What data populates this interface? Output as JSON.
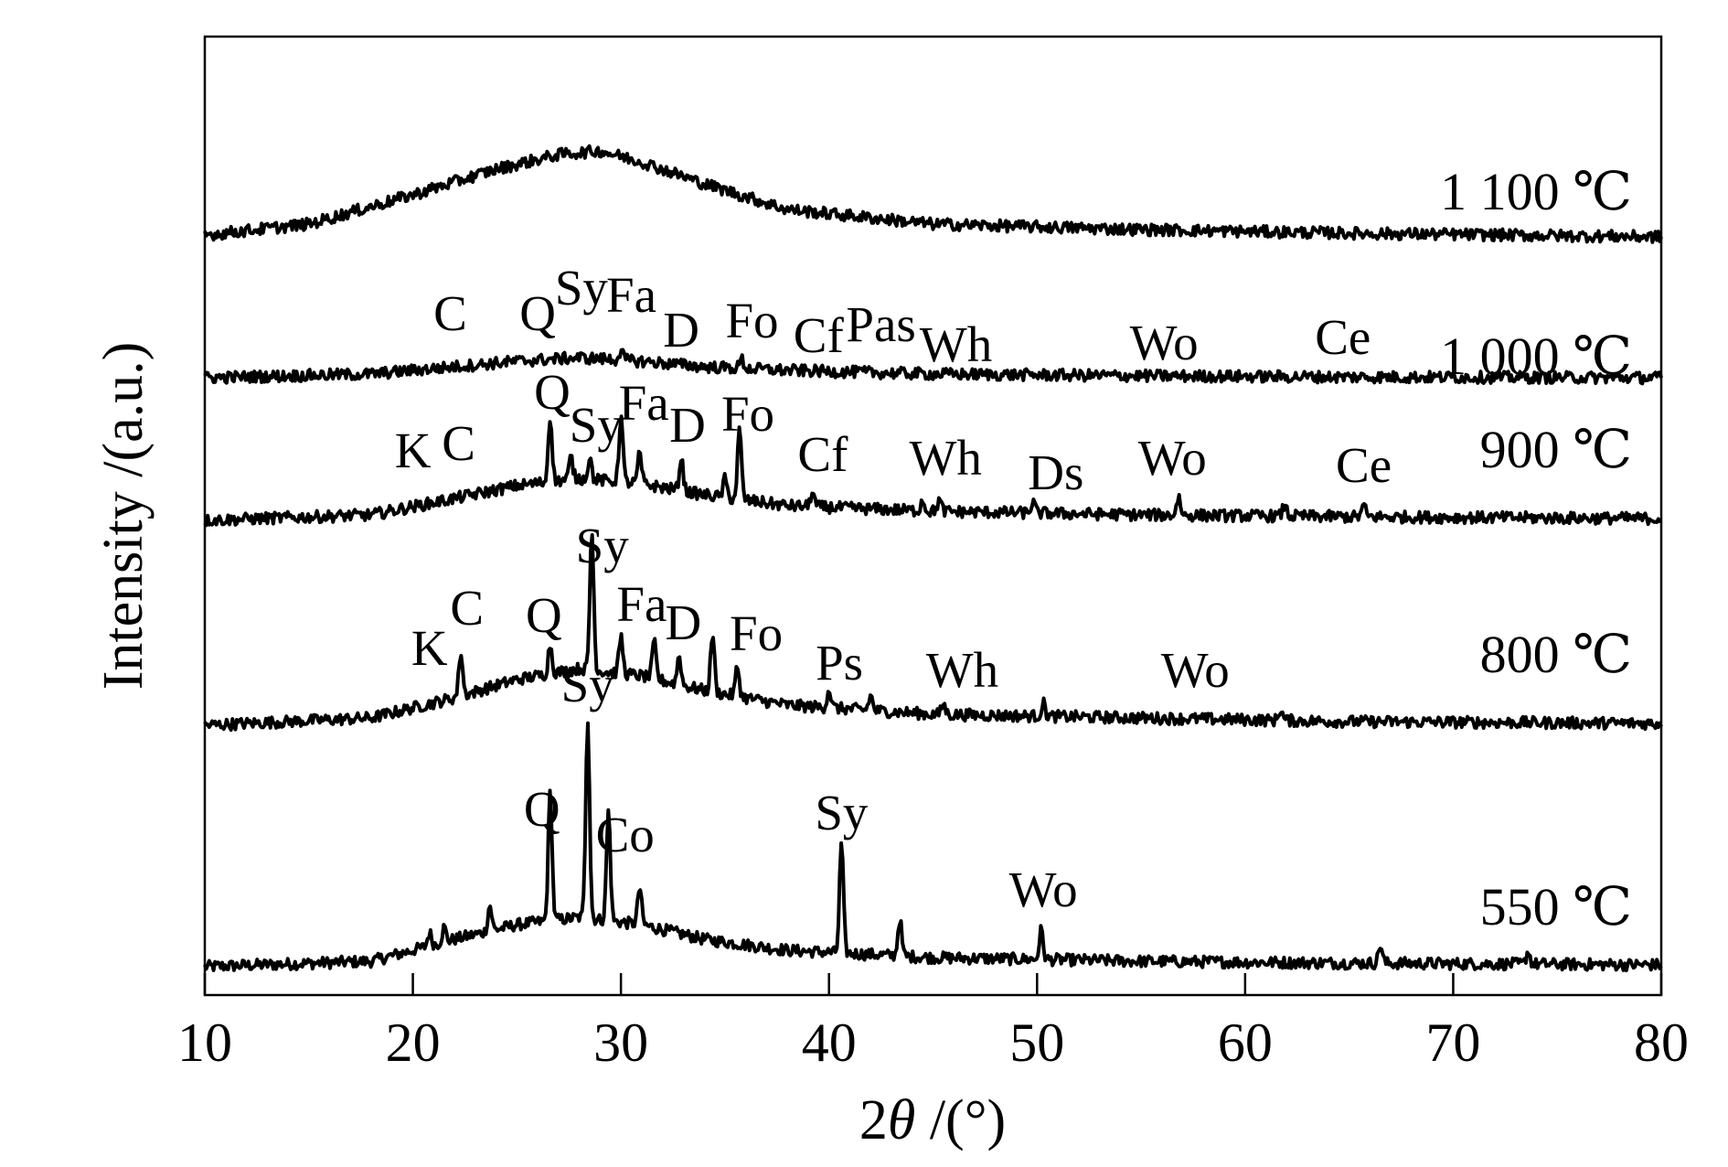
{
  "chart_data": {
    "type": "line",
    "xlabel_prefix": "2",
    "xlabel_symbol": "θ",
    "xlabel_suffix": " /(°)",
    "ylabel": "Intensity /(a.u.)",
    "xlim": [
      10,
      80
    ],
    "x_ticks": [
      10,
      20,
      30,
      40,
      50,
      60,
      70,
      80
    ],
    "y_ticks_shown": false,
    "grid": false,
    "series": [
      {
        "name": "550 ℃",
        "baseline": 0.0,
        "background": [
          [
            10,
            0.15
          ],
          [
            18,
            0.3
          ],
          [
            22,
            0.9
          ],
          [
            25,
            1.3
          ],
          [
            28,
            1.5
          ],
          [
            31,
            1.3
          ],
          [
            34,
            0.9
          ],
          [
            38,
            0.6
          ],
          [
            45,
            0.4
          ],
          [
            55,
            0.3
          ],
          [
            65,
            0.25
          ],
          [
            80,
            0.2
          ]
        ],
        "peaks": [
          [
            20.8,
            0.35
          ],
          [
            21.5,
            0.4
          ],
          [
            23.7,
            0.7
          ],
          [
            26.6,
            3.5
          ],
          [
            28.4,
            5.5
          ],
          [
            29.4,
            3.0
          ],
          [
            30.9,
            1.0
          ],
          [
            40.6,
            3.0
          ],
          [
            43.4,
            1.0
          ],
          [
            50.2,
            0.8
          ],
          [
            66.5,
            0.5
          ],
          [
            73.6,
            0.35
          ]
        ],
        "labels": [
          {
            "text": "Q",
            "x": 26.2,
            "level": 4.0
          },
          {
            "text": "Co",
            "x": 30.2,
            "level": 3.3
          },
          {
            "text": "Sy",
            "x": 40.6,
            "level": 3.9
          },
          {
            "text": "Wo",
            "x": 50.3,
            "level": 1.8
          }
        ]
      },
      {
        "name": "800 ℃",
        "baseline": 6.6,
        "background": [
          [
            10,
            0.15
          ],
          [
            18,
            0.35
          ],
          [
            22,
            0.9
          ],
          [
            25,
            1.4
          ],
          [
            28,
            1.7
          ],
          [
            31,
            1.5
          ],
          [
            34,
            1.1
          ],
          [
            38,
            0.7
          ],
          [
            45,
            0.45
          ],
          [
            55,
            0.35
          ],
          [
            65,
            0.25
          ],
          [
            80,
            0.2
          ]
        ],
        "peaks": [
          [
            22.3,
            1.2
          ],
          [
            26.6,
            0.8
          ],
          [
            28.6,
            3.8
          ],
          [
            30.0,
            1.0
          ],
          [
            31.6,
            1.0
          ],
          [
            32.8,
            0.8
          ],
          [
            34.4,
            1.6
          ],
          [
            35.6,
            0.8
          ],
          [
            40.0,
            0.5
          ],
          [
            42.0,
            0.4
          ],
          [
            45.5,
            0.3
          ],
          [
            50.3,
            0.35
          ],
          [
            61.7,
            0.3
          ]
        ],
        "labels": [
          {
            "text": "Sy",
            "x": 28.4,
            "level": 0.8,
            "side": "below"
          },
          {
            "text": "K",
            "x": 20.8,
            "level": 1.8
          },
          {
            "text": "C",
            "x": 22.6,
            "level": 2.9
          },
          {
            "text": "Q",
            "x": 26.3,
            "level": 2.7
          },
          {
            "text": "Fa",
            "x": 31.0,
            "level": 3.0
          },
          {
            "text": "D",
            "x": 33.0,
            "level": 2.5
          },
          {
            "text": "Fo",
            "x": 36.5,
            "level": 2.2
          },
          {
            "text": "Ps",
            "x": 40.5,
            "level": 1.4
          },
          {
            "text": "Wh",
            "x": 46.4,
            "level": 1.2
          },
          {
            "text": "Wo",
            "x": 57.6,
            "level": 1.2
          }
        ]
      },
      {
        "name": "900 ℃",
        "baseline": 12.2,
        "background": [
          [
            10,
            0.15
          ],
          [
            18,
            0.3
          ],
          [
            22,
            0.75
          ],
          [
            25,
            1.1
          ],
          [
            28,
            1.3
          ],
          [
            31,
            1.15
          ],
          [
            34,
            0.85
          ],
          [
            38,
            0.55
          ],
          [
            45,
            0.4
          ],
          [
            55,
            0.3
          ],
          [
            65,
            0.25
          ],
          [
            80,
            0.2
          ]
        ],
        "peaks": [
          [
            26.6,
            1.8
          ],
          [
            27.6,
            0.6
          ],
          [
            28.5,
            0.6
          ],
          [
            30.0,
            1.8
          ],
          [
            30.9,
            0.8
          ],
          [
            32.9,
            0.9
          ],
          [
            35.0,
            0.5
          ],
          [
            35.7,
            1.9
          ],
          [
            39.2,
            0.4
          ],
          [
            44.5,
            0.3
          ],
          [
            45.3,
            0.3
          ],
          [
            49.8,
            0.3
          ],
          [
            56.8,
            0.5
          ],
          [
            61.9,
            0.3
          ],
          [
            65.7,
            0.3
          ]
        ],
        "labels": [
          {
            "text": "Sy",
            "x": 29.1,
            "level": -1.0
          },
          {
            "text": "K",
            "x": 20.0,
            "level": 1.6
          },
          {
            "text": "C",
            "x": 22.2,
            "level": 1.8
          },
          {
            "text": "Q",
            "x": 26.7,
            "level": 3.2
          },
          {
            "text": "Sy",
            "x": 28.8,
            "level": 2.3
          },
          {
            "text": "Fa",
            "x": 31.1,
            "level": 2.9
          },
          {
            "text": "D",
            "x": 33.2,
            "level": 2.3
          },
          {
            "text": "Fo",
            "x": 36.1,
            "level": 2.6
          },
          {
            "text": "Cf",
            "x": 39.7,
            "level": 1.5
          },
          {
            "text": "Wh",
            "x": 45.6,
            "level": 1.4
          },
          {
            "text": "Ds",
            "x": 50.9,
            "level": 1.0
          },
          {
            "text": "Wo",
            "x": 56.5,
            "level": 1.4
          },
          {
            "text": "Ce",
            "x": 65.7,
            "level": 1.2
          }
        ]
      },
      {
        "name": "1 000 ℃",
        "baseline": 16.15,
        "background": [
          [
            10,
            0.1
          ],
          [
            18,
            0.2
          ],
          [
            22,
            0.4
          ],
          [
            25,
            0.55
          ],
          [
            28,
            0.65
          ],
          [
            31,
            0.55
          ],
          [
            34,
            0.4
          ],
          [
            38,
            0.3
          ],
          [
            45,
            0.2
          ],
          [
            55,
            0.15
          ],
          [
            65,
            0.12
          ],
          [
            80,
            0.1
          ]
        ],
        "peaks": [
          [
            30.0,
            0.25
          ],
          [
            35.8,
            0.25
          ]
        ],
        "labels": [
          {
            "text": "C",
            "x": 21.8,
            "level": 1.4
          },
          {
            "text": "Q",
            "x": 26.0,
            "level": 1.4
          },
          {
            "text": "Sy",
            "x": 28.1,
            "level": 2.1
          },
          {
            "text": "Fa",
            "x": 30.5,
            "level": 1.9
          },
          {
            "text": "D",
            "x": 32.9,
            "level": 0.95
          },
          {
            "text": "Fo",
            "x": 36.3,
            "level": 1.2
          },
          {
            "text": "Cf",
            "x": 39.5,
            "level": 0.8
          },
          {
            "text": "Pas",
            "x": 42.5,
            "level": 1.1
          },
          {
            "text": "Wh",
            "x": 46.1,
            "level": 0.55
          },
          {
            "text": "Wo",
            "x": 56.1,
            "level": 0.6
          },
          {
            "text": "Ce",
            "x": 64.7,
            "level": 0.75
          }
        ]
      },
      {
        "name": "1 100 ℃",
        "baseline": 19.85,
        "background": [
          [
            10,
            0.3
          ],
          [
            15,
            0.6
          ],
          [
            20,
            1.4
          ],
          [
            24,
            2.1
          ],
          [
            27,
            2.5
          ],
          [
            29,
            2.6
          ],
          [
            31,
            2.3
          ],
          [
            34,
            1.7
          ],
          [
            38,
            1.0
          ],
          [
            45,
            0.6
          ],
          [
            55,
            0.45
          ],
          [
            65,
            0.35
          ],
          [
            80,
            0.25
          ]
        ],
        "peaks": [],
        "labels": []
      }
    ]
  }
}
